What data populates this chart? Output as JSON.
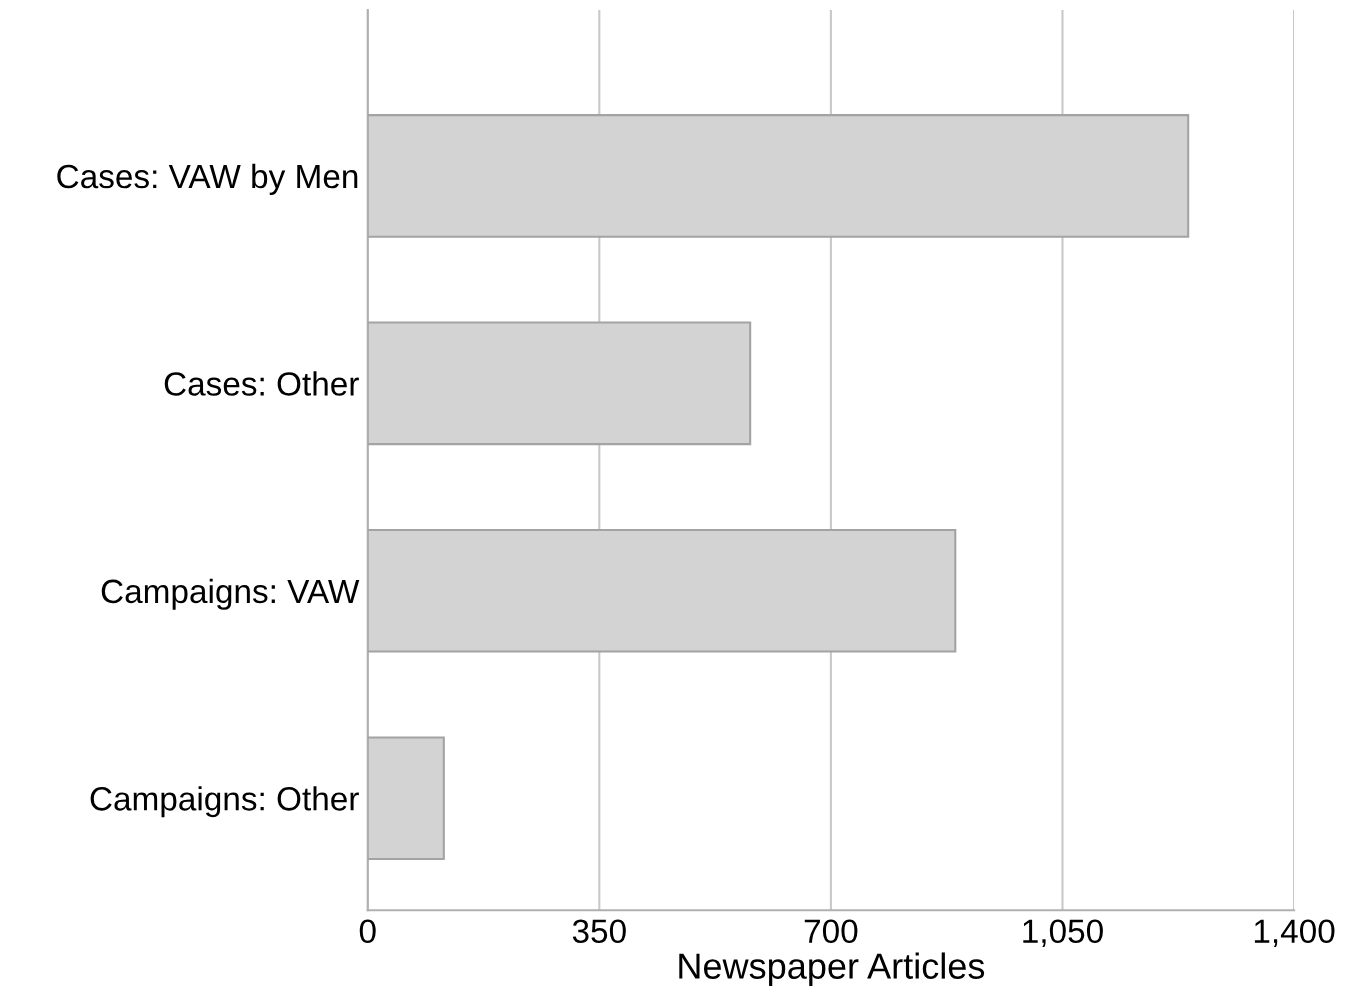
{
  "chart_data": {
    "type": "bar",
    "orientation": "horizontal",
    "xlabel": "Newspaper Articles",
    "categories": [
      "Cases: VAW by Men",
      "Cases: Other",
      "Campaigns: VAW",
      "Campaigns: Other"
    ],
    "values": [
      1240,
      578,
      888,
      115
    ],
    "color": "#d3d3d3",
    "xlim": [
      0,
      1400
    ],
    "xticks": [
      0,
      350,
      700,
      {
        "value": 1050,
        "label": "1,050"
      },
      {
        "value": 1400,
        "label": "1,400"
      }
    ],
    "grid": "x",
    "legend": false
  }
}
